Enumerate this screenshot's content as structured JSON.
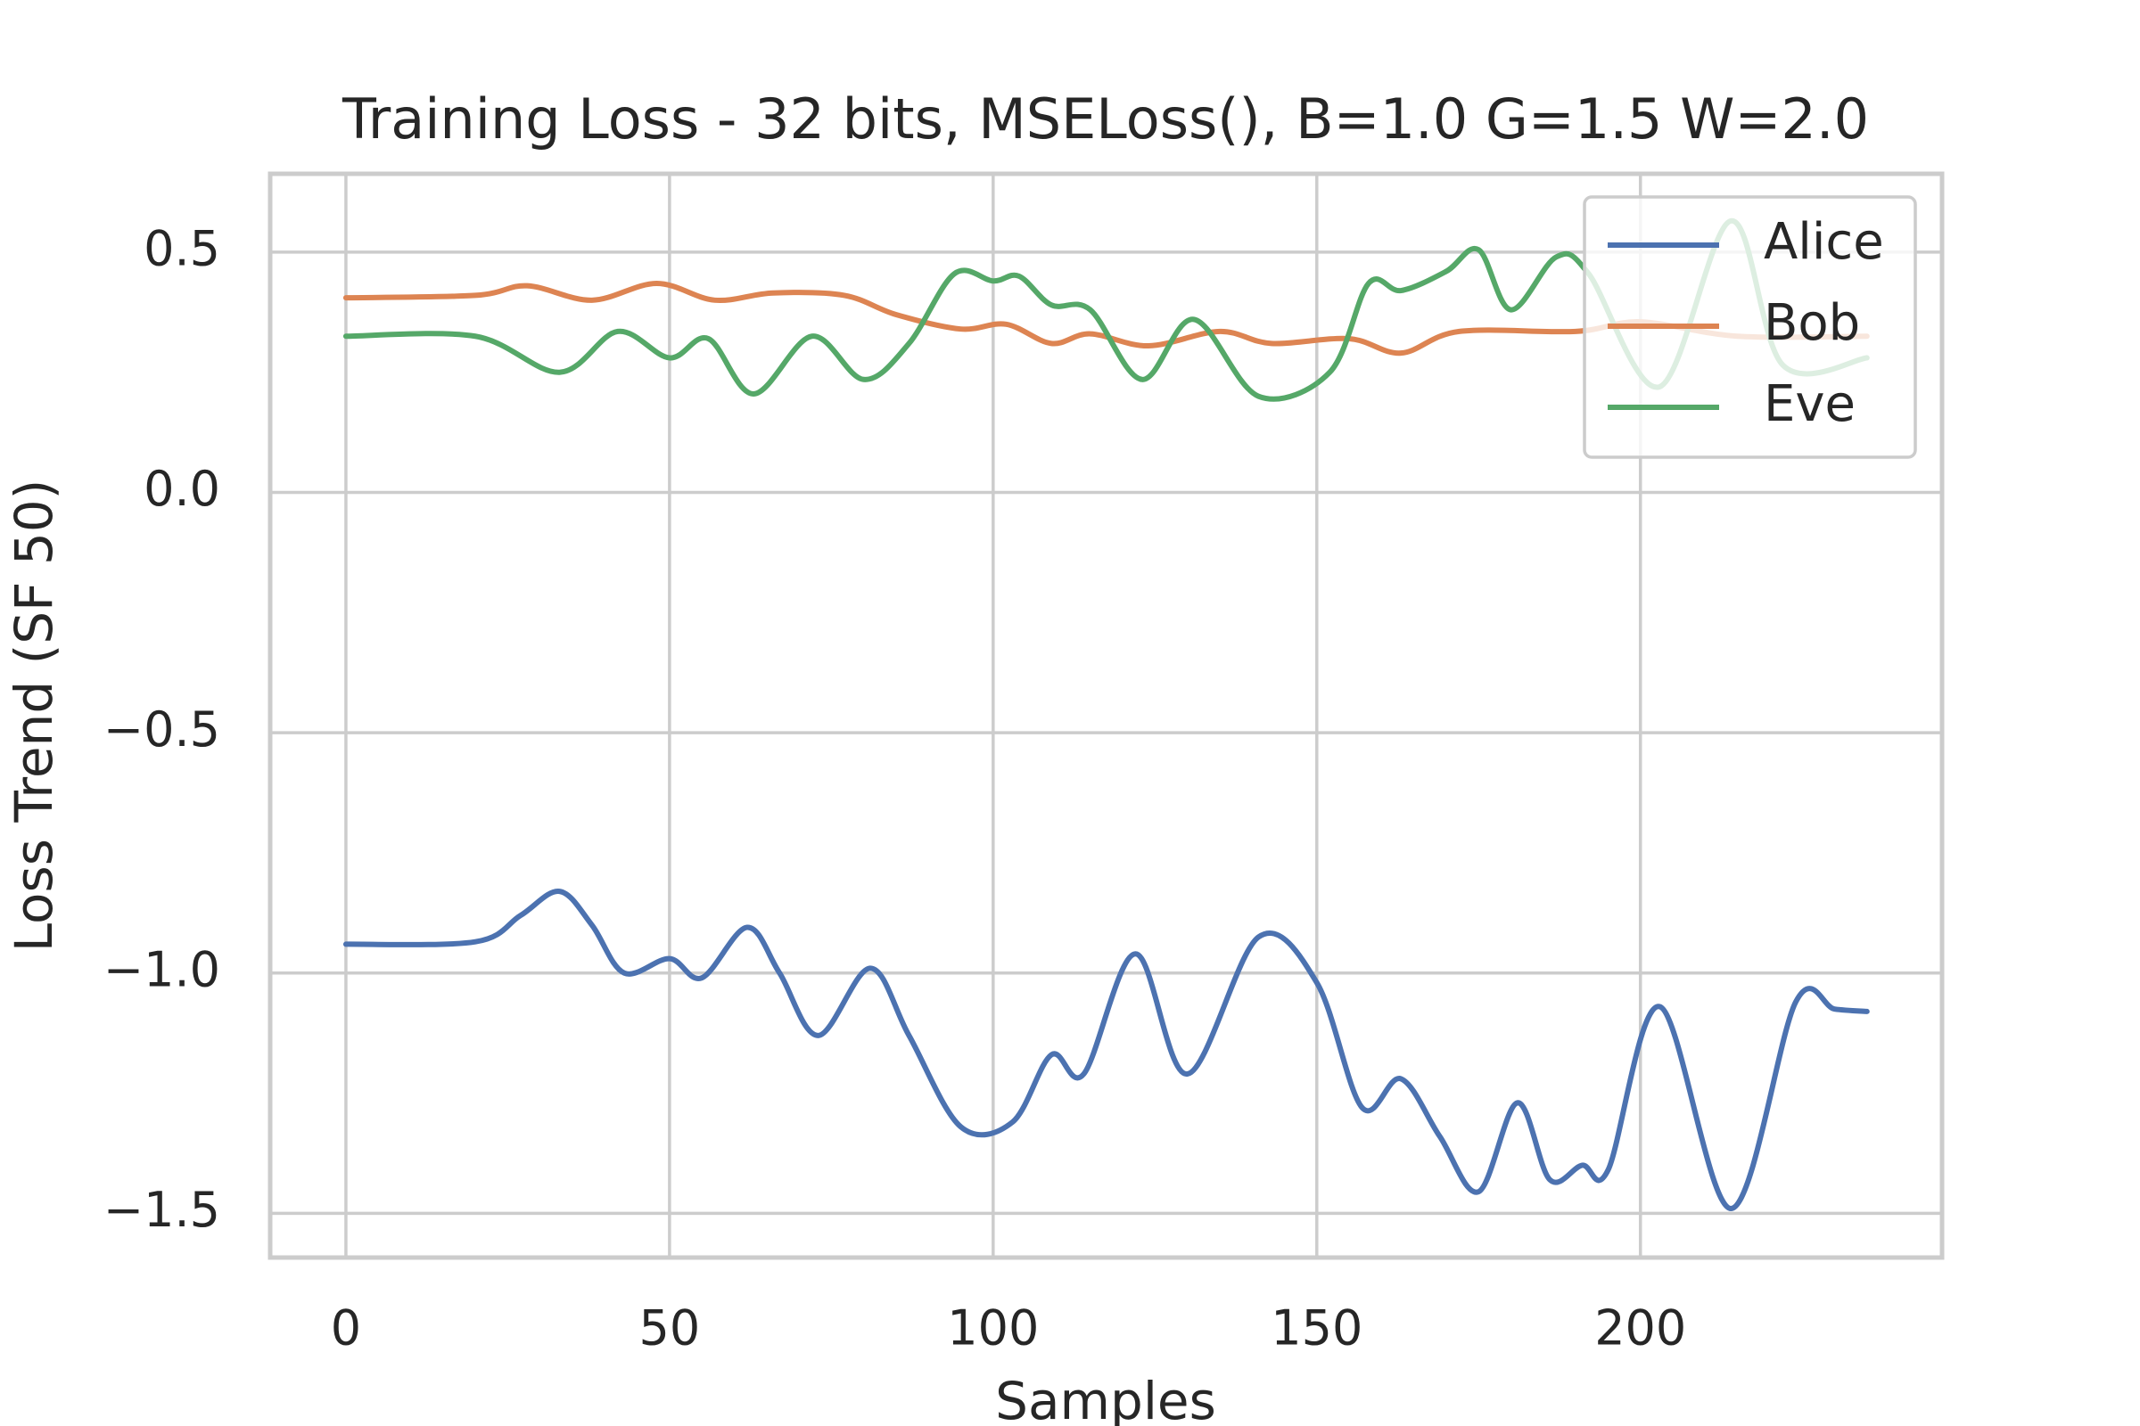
{
  "chart_data": {
    "type": "line",
    "title": "Training Loss - 32 bits, MSELoss(), B=1.0 G=1.5 W=2.0",
    "x_label": "Samples",
    "y_label": "Loss Trend (SF 50)",
    "xlim": [
      -11.7,
      246.6
    ],
    "ylim": [
      -1.592,
      0.663
    ],
    "xticks": [
      0,
      50,
      100,
      150,
      200
    ],
    "yticks": [
      {
        "value": -1.5,
        "label": "−1.5"
      },
      {
        "value": -1.0,
        "label": "−1.0"
      },
      {
        "value": -0.5,
        "label": "−0.5"
      },
      {
        "value": 0.0,
        "label": "0.0"
      },
      {
        "value": 0.5,
        "label": "0.5"
      }
    ],
    "grid": true,
    "legend": "upper right",
    "series": [
      {
        "name": "Alice",
        "color": "#4c72b0",
        "x": [
          0,
          20,
          27,
          33,
          38,
          43,
          50,
          55,
          62,
          67,
          73,
          81,
          87,
          95,
          103,
          109,
          114,
          122,
          130,
          141,
          150,
          157,
          163,
          169,
          175,
          181,
          186,
          191,
          195,
          203,
          214,
          224,
          230,
          235
        ],
        "values": [
          -0.94,
          -0.935,
          -0.88,
          -0.83,
          -0.9,
          -1.0,
          -0.97,
          -1.01,
          -0.905,
          -1.0,
          -1.13,
          -0.99,
          -1.13,
          -1.32,
          -1.31,
          -1.17,
          -1.21,
          -0.96,
          -1.21,
          -0.925,
          -1.02,
          -1.28,
          -1.22,
          -1.34,
          -1.455,
          -1.27,
          -1.43,
          -1.4,
          -1.41,
          -1.07,
          -1.49,
          -1.06,
          -1.075,
          -1.08
        ]
      },
      {
        "name": "Bob",
        "color": "#dd8452",
        "x": [
          0,
          20,
          28,
          38,
          48,
          57,
          66,
          77,
          85,
          95,
          102,
          109,
          115,
          124,
          135,
          143,
          155,
          163,
          172,
          190,
          200,
          215,
          235
        ],
        "values": [
          0.405,
          0.41,
          0.43,
          0.4,
          0.435,
          0.4,
          0.415,
          0.41,
          0.37,
          0.34,
          0.35,
          0.31,
          0.33,
          0.305,
          0.335,
          0.31,
          0.32,
          0.29,
          0.335,
          0.335,
          0.355,
          0.325,
          0.325
        ]
      },
      {
        "name": "Eve",
        "color": "#55a868",
        "x": [
          0,
          20,
          33,
          42,
          50,
          56,
          63,
          72,
          80,
          87,
          94,
          100,
          104,
          109,
          115,
          123,
          131,
          141,
          152,
          158,
          163,
          170,
          175,
          180,
          187,
          192,
          203,
          214,
          222,
          235
        ],
        "values": [
          0.325,
          0.325,
          0.25,
          0.335,
          0.28,
          0.32,
          0.205,
          0.325,
          0.235,
          0.31,
          0.455,
          0.44,
          0.45,
          0.39,
          0.38,
          0.235,
          0.36,
          0.2,
          0.25,
          0.435,
          0.42,
          0.46,
          0.505,
          0.38,
          0.49,
          0.455,
          0.22,
          0.565,
          0.265,
          0.28
        ]
      }
    ]
  }
}
